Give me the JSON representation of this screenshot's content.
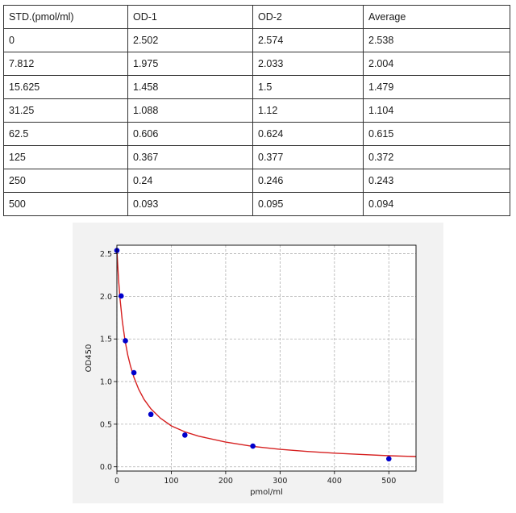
{
  "table": {
    "headers": [
      "STD.(pmol/ml)",
      "OD-1",
      "OD-2",
      "Average"
    ],
    "rows": [
      [
        "0",
        "2.502",
        "2.574",
        "2.538"
      ],
      [
        "7.812",
        "1.975",
        "2.033",
        "2.004"
      ],
      [
        "15.625",
        "1.458",
        "1.5",
        "1.479"
      ],
      [
        "31.25",
        "1.088",
        "1.12",
        "1.104"
      ],
      [
        "62.5",
        "0.606",
        "0.624",
        "0.615"
      ],
      [
        "125",
        "0.367",
        "0.377",
        "0.372"
      ],
      [
        "250",
        "0.24",
        "0.246",
        "0.243"
      ],
      [
        "500",
        "0.093",
        "0.095",
        "0.094"
      ]
    ]
  },
  "chart_data": {
    "type": "scatter",
    "title": "",
    "xlabel": "pmol/ml",
    "ylabel": "OD450",
    "xlim": [
      0,
      550
    ],
    "ylim": [
      -0.05,
      2.6
    ],
    "xticks": [
      0,
      100,
      200,
      300,
      400,
      500
    ],
    "yticks": [
      0.0,
      0.5,
      1.0,
      1.5,
      2.0,
      2.5
    ],
    "ytick_labels": [
      "0.0",
      "0.5",
      "1.0",
      "1.5",
      "2.0",
      "2.5"
    ],
    "grid": true,
    "series": [
      {
        "type": "scatter",
        "x": [
          0,
          7.812,
          15.625,
          31.25,
          62.5,
          125,
          250,
          500
        ],
        "y": [
          2.538,
          2.004,
          1.479,
          1.104,
          0.615,
          0.372,
          0.243,
          0.094
        ],
        "color": "#0000cc"
      },
      {
        "type": "line",
        "x": [
          0,
          3,
          6,
          10,
          15,
          20,
          25,
          31.25,
          40,
          50,
          62.5,
          80,
          100,
          125,
          150,
          200,
          250,
          300,
          350,
          400,
          450,
          500,
          550
        ],
        "y": [
          2.54,
          2.2,
          1.96,
          1.71,
          1.48,
          1.31,
          1.18,
          1.05,
          0.91,
          0.79,
          0.68,
          0.57,
          0.48,
          0.41,
          0.36,
          0.29,
          0.24,
          0.205,
          0.18,
          0.16,
          0.145,
          0.13,
          0.12
        ],
        "color": "#d62020"
      }
    ]
  }
}
